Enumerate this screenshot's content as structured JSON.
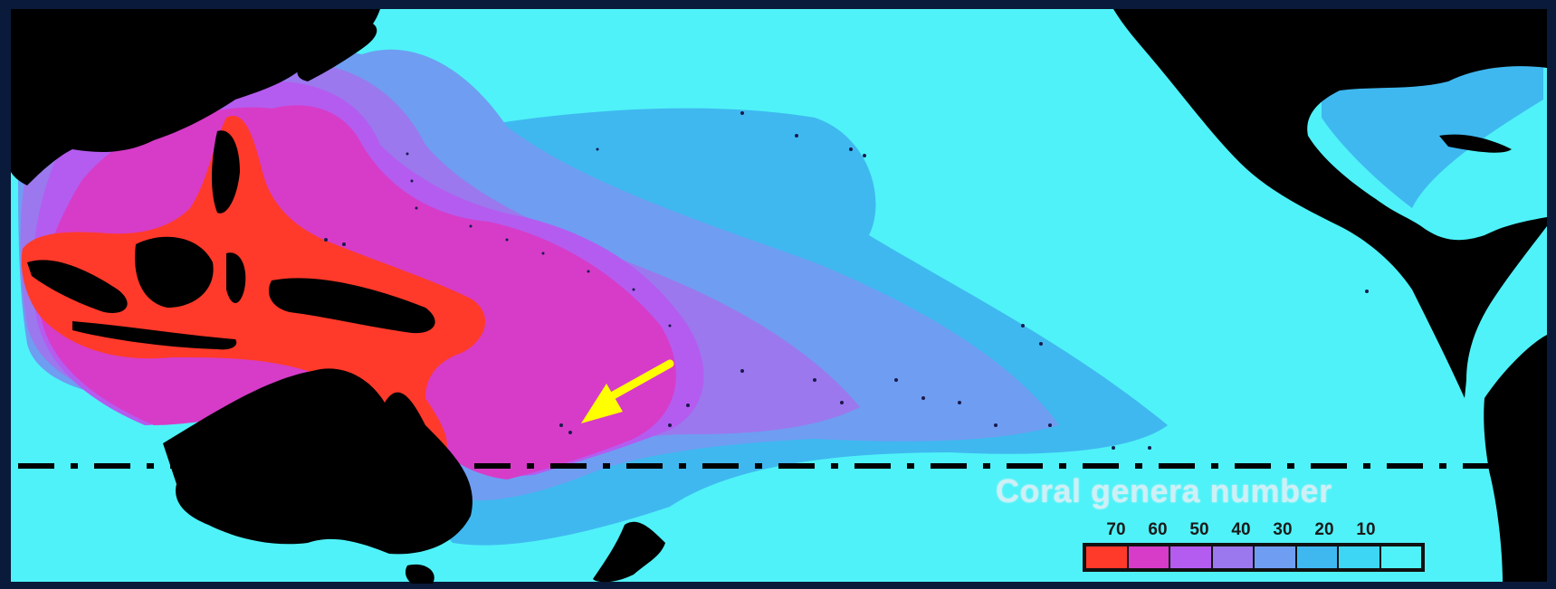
{
  "legend": {
    "title": "Coral genera number",
    "ticks": [
      "70",
      "60",
      "50",
      "40",
      "30",
      "20",
      "10"
    ],
    "swatches": [
      {
        "level": "70",
        "color": "#ff3a2a"
      },
      {
        "level": "60",
        "color": "#d63cc8"
      },
      {
        "level": "50",
        "color": "#b45cf0"
      },
      {
        "level": "40",
        "color": "#9b78ee"
      },
      {
        "level": "30",
        "color": "#6f9df2"
      },
      {
        "level": "20",
        "color": "#3fb8f0"
      },
      {
        "level": "10",
        "color": "#3dd6f4"
      },
      {
        "level": "0",
        "color": "#4ff2f8"
      }
    ]
  },
  "colors": {
    "ocean": "#4ff2f8",
    "land": "#000000",
    "arrow": "#ffff00",
    "frame": "#0a1a3a"
  },
  "markers": {
    "dashed_line": "dash-dot latitude line",
    "arrow": "yellow-arrow-icon"
  }
}
